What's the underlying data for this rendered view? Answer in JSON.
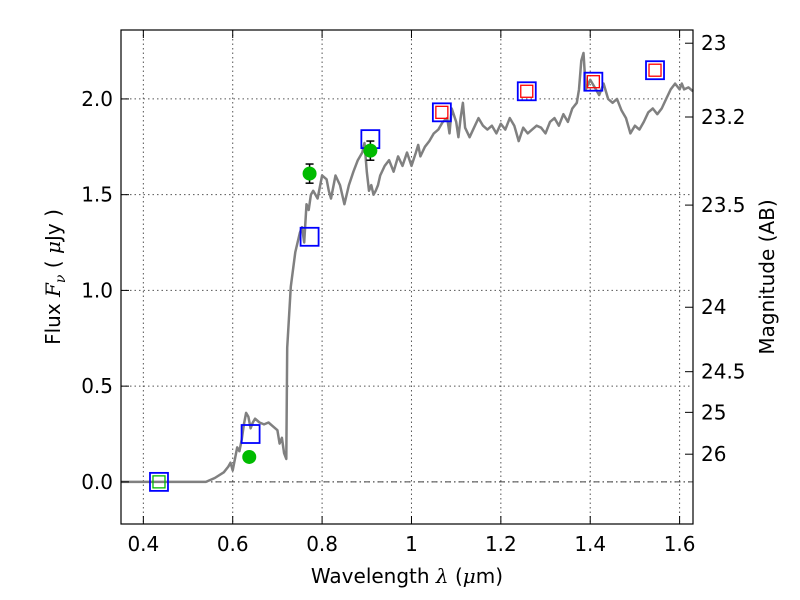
{
  "chart_data": {
    "type": "scatter",
    "title": "",
    "xlabel": {
      "prefix": "Wavelength  ",
      "symbol": "λ",
      "unit_open": " (",
      "unit_mu": "μ",
      "unit_rest": "m)"
    },
    "ylabel": {
      "prefix": "Flux  ",
      "symbol": "F",
      "subscript": "ν",
      "unit_open": "  ( ",
      "unit_mu": "μ",
      "unit_rest": "Jy )"
    },
    "ylabel_right": "Magnitude (AB)",
    "xlim": [
      0.35,
      1.63
    ],
    "ylim": [
      -0.22,
      2.36
    ],
    "x_ticks": [
      {
        "value": 0.4,
        "label": "0.4"
      },
      {
        "value": 0.6,
        "label": "0.6"
      },
      {
        "value": 0.8,
        "label": "0.8"
      },
      {
        "value": 1.0,
        "label": "1"
      },
      {
        "value": 1.2,
        "label": "1.2"
      },
      {
        "value": 1.4,
        "label": "1.4"
      },
      {
        "value": 1.6,
        "label": "1.6"
      }
    ],
    "y_ticks": [
      {
        "value": 0.0,
        "label": "0.0"
      },
      {
        "value": 0.5,
        "label": "0.5"
      },
      {
        "value": 1.0,
        "label": "1.0"
      },
      {
        "value": 1.5,
        "label": "1.5"
      },
      {
        "value": 2.0,
        "label": "2.0"
      }
    ],
    "right_ticks": [
      {
        "label": "23",
        "mag": 23.0
      },
      {
        "label": "23.2",
        "mag": 23.2
      },
      {
        "label": "23.5",
        "mag": 23.5
      },
      {
        "label": "24",
        "mag": 24.0
      },
      {
        "label": "24.5",
        "mag": 24.5
      },
      {
        "label": "25",
        "mag": 25.0
      },
      {
        "label": "26",
        "mag": 26.0
      }
    ],
    "grid": true,
    "zero_line": true,
    "colors": {
      "model": "#808080",
      "model_photometry": "#0000ff",
      "observed_upper_box": "#ff0000",
      "detections": "#00bb00",
      "grid": "#555555"
    },
    "series": [
      {
        "type": "line",
        "points": [
          [
            0.35,
            0.0
          ],
          [
            0.54,
            0.0
          ],
          [
            0.56,
            0.02
          ],
          [
            0.58,
            0.05
          ],
          [
            0.59,
            0.08
          ],
          [
            0.595,
            0.1
          ],
          [
            0.6,
            0.06
          ],
          [
            0.61,
            0.18
          ],
          [
            0.615,
            0.16
          ],
          [
            0.62,
            0.22
          ],
          [
            0.625,
            0.3
          ],
          [
            0.63,
            0.36
          ],
          [
            0.635,
            0.34
          ],
          [
            0.64,
            0.28
          ],
          [
            0.645,
            0.31
          ],
          [
            0.65,
            0.33
          ],
          [
            0.66,
            0.31
          ],
          [
            0.67,
            0.3
          ],
          [
            0.68,
            0.31
          ],
          [
            0.69,
            0.29
          ],
          [
            0.7,
            0.27
          ],
          [
            0.705,
            0.2
          ],
          [
            0.71,
            0.23
          ],
          [
            0.715,
            0.15
          ],
          [
            0.72,
            0.12
          ],
          [
            0.722,
            0.7
          ],
          [
            0.73,
            1.02
          ],
          [
            0.74,
            1.2
          ],
          [
            0.75,
            1.3
          ],
          [
            0.755,
            1.33
          ],
          [
            0.76,
            1.25
          ],
          [
            0.765,
            1.45
          ],
          [
            0.77,
            1.42
          ],
          [
            0.775,
            1.5
          ],
          [
            0.78,
            1.52
          ],
          [
            0.79,
            1.48
          ],
          [
            0.8,
            1.6
          ],
          [
            0.81,
            1.58
          ],
          [
            0.815,
            1.52
          ],
          [
            0.82,
            1.48
          ],
          [
            0.83,
            1.6
          ],
          [
            0.84,
            1.55
          ],
          [
            0.85,
            1.45
          ],
          [
            0.86,
            1.55
          ],
          [
            0.87,
            1.62
          ],
          [
            0.88,
            1.68
          ],
          [
            0.89,
            1.72
          ],
          [
            0.895,
            1.77
          ],
          [
            0.9,
            1.62
          ],
          [
            0.905,
            1.52
          ],
          [
            0.91,
            1.55
          ],
          [
            0.915,
            1.5
          ],
          [
            0.92,
            1.52
          ],
          [
            0.925,
            1.55
          ],
          [
            0.93,
            1.6
          ],
          [
            0.94,
            1.65
          ],
          [
            0.95,
            1.68
          ],
          [
            0.96,
            1.62
          ],
          [
            0.97,
            1.7
          ],
          [
            0.98,
            1.65
          ],
          [
            0.99,
            1.72
          ],
          [
            1.0,
            1.65
          ],
          [
            1.01,
            1.72
          ],
          [
            1.015,
            1.76
          ],
          [
            1.02,
            1.7
          ],
          [
            1.03,
            1.75
          ],
          [
            1.04,
            1.78
          ],
          [
            1.05,
            1.82
          ],
          [
            1.06,
            1.84
          ],
          [
            1.07,
            1.88
          ],
          [
            1.08,
            1.9
          ],
          [
            1.085,
            1.82
          ],
          [
            1.09,
            1.95
          ],
          [
            1.1,
            1.88
          ],
          [
            1.105,
            1.8
          ],
          [
            1.11,
            1.9
          ],
          [
            1.115,
            1.98
          ],
          [
            1.12,
            1.85
          ],
          [
            1.13,
            1.8
          ],
          [
            1.14,
            1.85
          ],
          [
            1.15,
            1.9
          ],
          [
            1.16,
            1.86
          ],
          [
            1.17,
            1.84
          ],
          [
            1.18,
            1.86
          ],
          [
            1.19,
            1.82
          ],
          [
            1.2,
            1.87
          ],
          [
            1.21,
            1.84
          ],
          [
            1.22,
            1.9
          ],
          [
            1.23,
            1.86
          ],
          [
            1.24,
            1.78
          ],
          [
            1.25,
            1.85
          ],
          [
            1.26,
            1.82
          ],
          [
            1.27,
            1.84
          ],
          [
            1.28,
            1.86
          ],
          [
            1.29,
            1.85
          ],
          [
            1.3,
            1.82
          ],
          [
            1.31,
            1.88
          ],
          [
            1.32,
            1.9
          ],
          [
            1.33,
            1.86
          ],
          [
            1.34,
            1.92
          ],
          [
            1.35,
            1.88
          ],
          [
            1.36,
            1.95
          ],
          [
            1.37,
            1.98
          ],
          [
            1.375,
            2.05
          ],
          [
            1.38,
            2.2
          ],
          [
            1.385,
            2.24
          ],
          [
            1.39,
            2.05
          ],
          [
            1.4,
            2.1
          ],
          [
            1.41,
            2.06
          ],
          [
            1.42,
            2.02
          ],
          [
            1.43,
            2.08
          ],
          [
            1.44,
            2.0
          ],
          [
            1.45,
            1.98
          ],
          [
            1.46,
            2.0
          ],
          [
            1.47,
            1.94
          ],
          [
            1.48,
            1.9
          ],
          [
            1.49,
            1.82
          ],
          [
            1.5,
            1.86
          ],
          [
            1.51,
            1.84
          ],
          [
            1.52,
            1.88
          ],
          [
            1.53,
            1.93
          ],
          [
            1.54,
            1.95
          ],
          [
            1.55,
            1.92
          ],
          [
            1.56,
            1.95
          ],
          [
            1.57,
            2.0
          ],
          [
            1.58,
            2.05
          ],
          [
            1.59,
            2.08
          ],
          [
            1.6,
            2.05
          ],
          [
            1.605,
            2.08
          ],
          [
            1.61,
            2.05
          ],
          [
            1.62,
            2.06
          ],
          [
            1.63,
            2.04
          ]
        ]
      },
      {
        "type": "open_squares",
        "points": [
          [
            0.435,
            0.0
          ],
          [
            0.64,
            0.25
          ],
          [
            0.772,
            1.28
          ],
          [
            0.908,
            1.79
          ],
          [
            1.068,
            1.93
          ],
          [
            1.258,
            2.04
          ],
          [
            1.407,
            2.09
          ],
          [
            1.545,
            2.15
          ]
        ]
      },
      {
        "type": "small_open_squares",
        "points": [
          [
            0.435,
            0.0
          ],
          [
            1.068,
            1.93
          ],
          [
            1.258,
            2.04
          ],
          [
            1.407,
            2.09
          ],
          [
            1.545,
            2.15
          ]
        ]
      },
      {
        "type": "points_with_error_bars",
        "points": [
          {
            "x": 0.637,
            "y": 0.13,
            "err": 0.02
          },
          {
            "x": 0.772,
            "y": 1.61,
            "err": 0.05
          },
          {
            "x": 0.908,
            "y": 1.73,
            "err": 0.05
          }
        ]
      }
    ]
  }
}
